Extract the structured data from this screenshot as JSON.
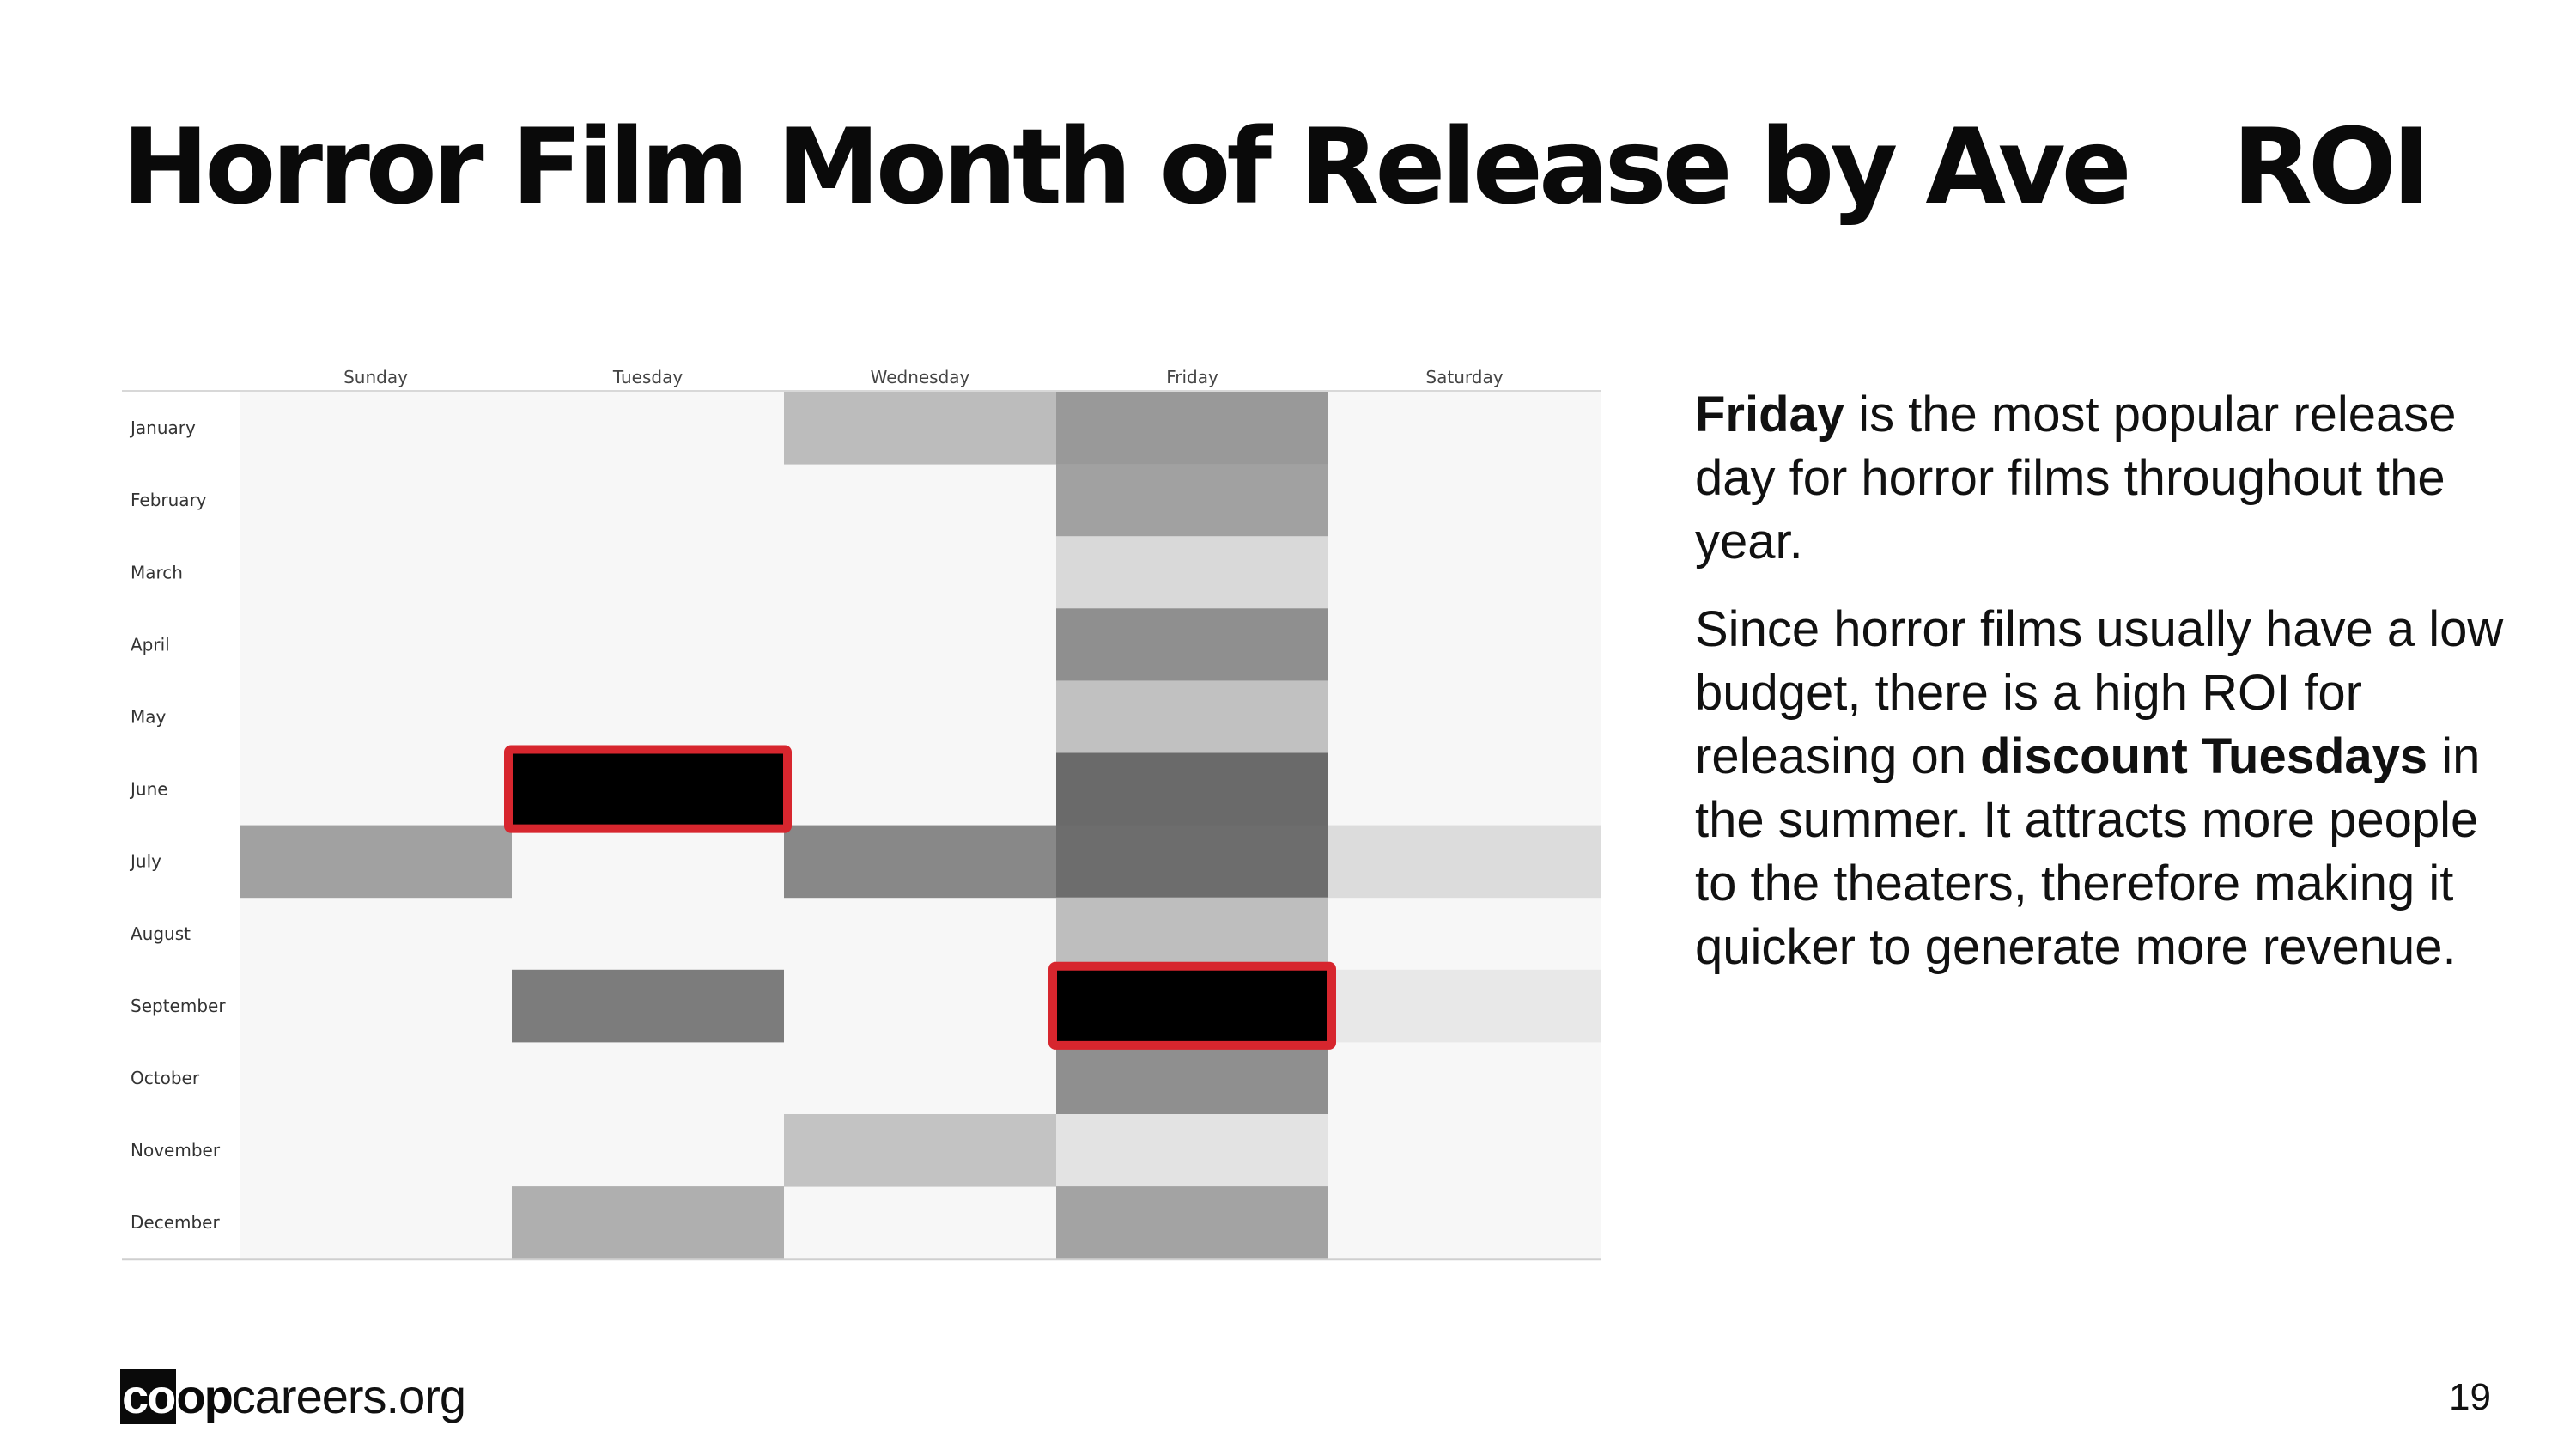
{
  "slide": {
    "title_part1": "Horror Film Month of Release by Ave",
    "title_part2": "ROI",
    "page_number": "19"
  },
  "text_panel": {
    "p1_bold": "Friday",
    "p1_rest": " is the most popular release day for horror films throughout the year.",
    "p2_start": "Since horror films usually have a low budget, there is a high ROI for releasing on ",
    "p2_bold": "discount Tuesdays",
    "p2_end": " in the summer. It attracts more people to the theaters, therefore making it quicker to generate more revenue."
  },
  "logo": {
    "co": "co",
    "op": "op",
    "rest": "careers.org"
  },
  "colors": {
    "highlight": "#d7262e",
    "max": "#000000",
    "min": "#f7f7f7"
  },
  "chart_data": {
    "type": "heatmap",
    "columns": [
      "Sunday",
      "Tuesday",
      "Wednesday",
      "Friday",
      "Saturday"
    ],
    "rows": [
      "January",
      "February",
      "March",
      "April",
      "May",
      "June",
      "July",
      "August",
      "September",
      "October",
      "November",
      "December"
    ],
    "value_scale": "relative shade, 0 = lightest, 1 = darkest (no numeric labels printed)",
    "values": [
      [
        null,
        null,
        0.24,
        0.38,
        null
      ],
      [
        null,
        null,
        null,
        0.35,
        null
      ],
      [
        null,
        null,
        null,
        0.12,
        null
      ],
      [
        null,
        null,
        null,
        0.42,
        null
      ],
      [
        null,
        null,
        null,
        0.22,
        null
      ],
      [
        null,
        1.0,
        null,
        0.57,
        null
      ],
      [
        0.35,
        null,
        0.45,
        0.56,
        0.11
      ],
      [
        null,
        null,
        null,
        0.23,
        null
      ],
      [
        null,
        0.5,
        null,
        1.0,
        0.06
      ],
      [
        null,
        null,
        null,
        0.42,
        null
      ],
      [
        null,
        null,
        0.21,
        0.08,
        null
      ],
      [
        null,
        0.29,
        null,
        0.34,
        null
      ]
    ],
    "highlighted_cells": [
      {
        "row": "June",
        "column": "Tuesday"
      },
      {
        "row": "September",
        "column": "Friday"
      }
    ]
  }
}
